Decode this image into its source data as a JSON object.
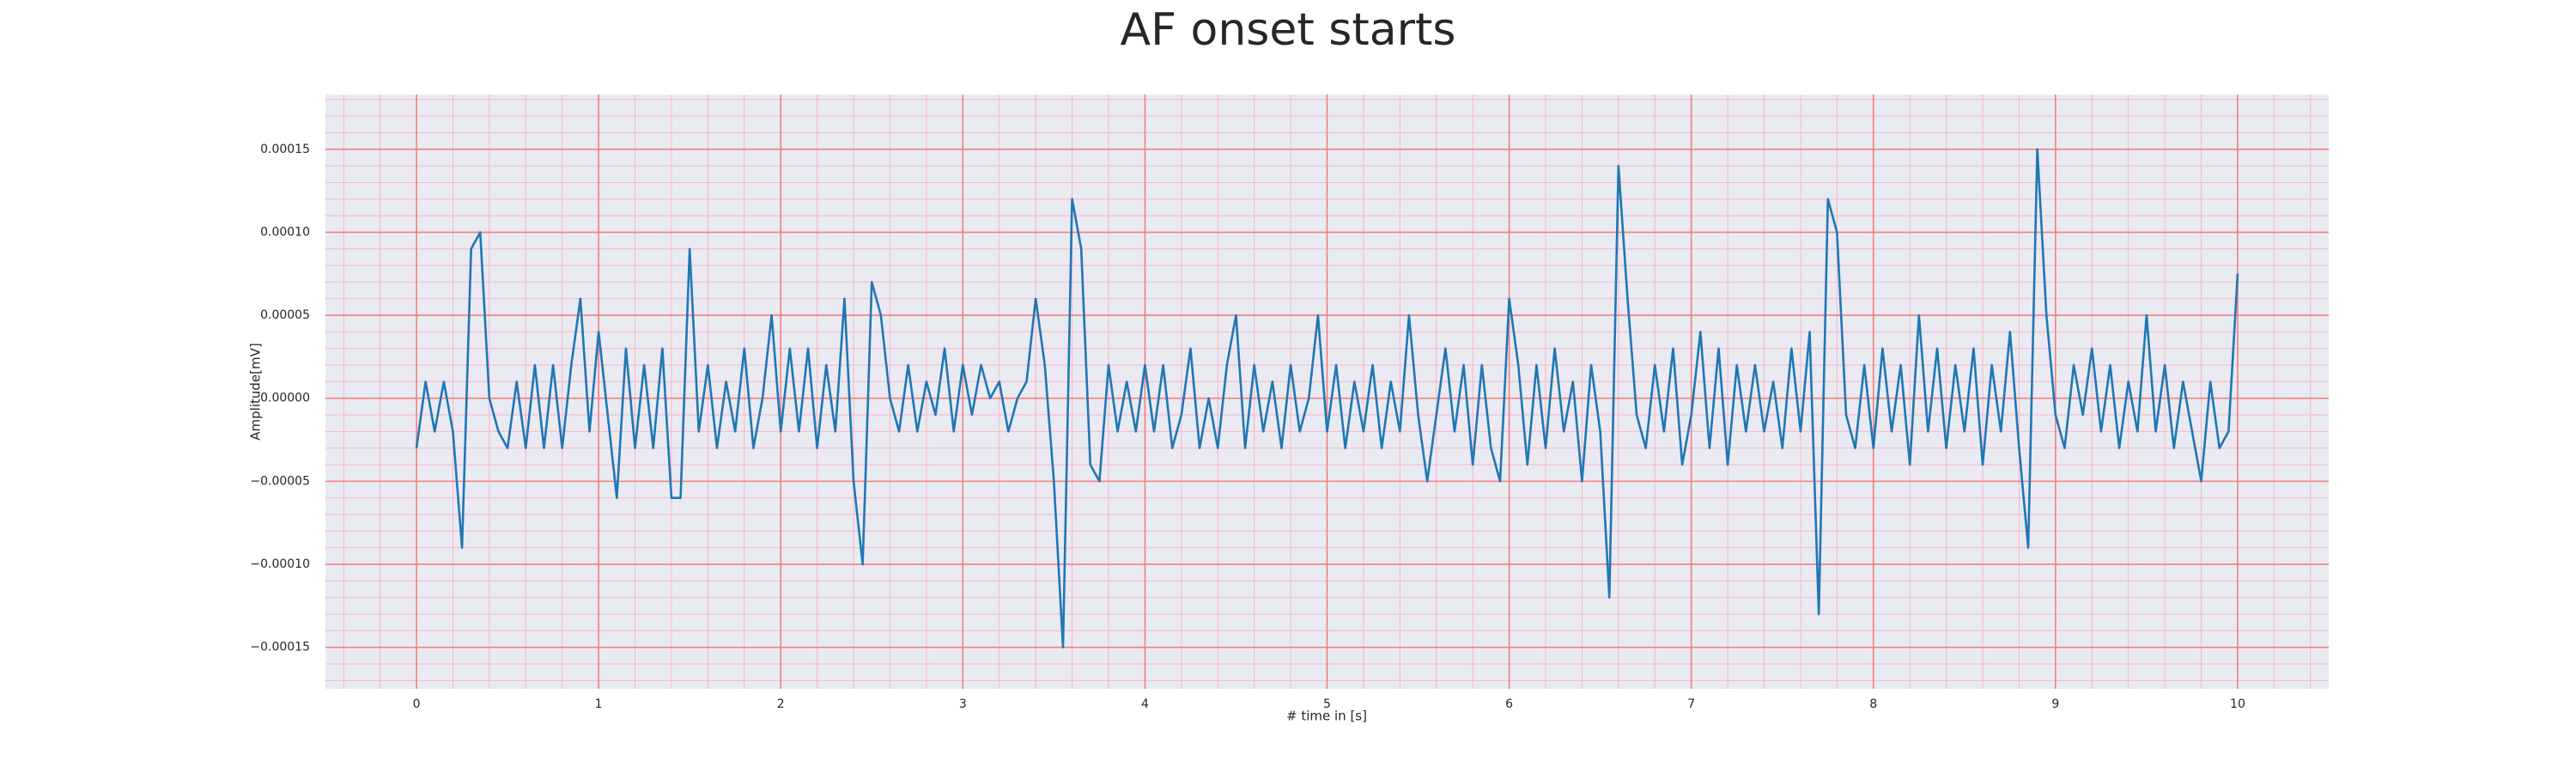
{
  "chart_data": {
    "type": "line",
    "title": "AF onset starts",
    "xlabel": "# time in [s]",
    "ylabel": "Amplitude[mV]",
    "color": "#1f77b4",
    "grid": true,
    "minor_grid": true,
    "xlim": [
      -0.5,
      10.5
    ],
    "ylim": [
      -0.000175,
      0.000183
    ],
    "xticks": [
      0,
      1,
      2,
      3,
      4,
      5,
      6,
      7,
      8,
      9,
      10
    ],
    "yticks": [
      {
        "value": -0.00015,
        "label": "−0.00015"
      },
      {
        "value": -0.0001,
        "label": "−0.00010"
      },
      {
        "value": -5e-05,
        "label": "−0.00005"
      },
      {
        "value": 0,
        "label": "0.00000"
      },
      {
        "value": 5e-05,
        "label": "0.00005"
      },
      {
        "value": 0.0001,
        "label": "0.00010"
      },
      {
        "value": 0.00015,
        "label": "0.00015"
      }
    ],
    "x": [
      0,
      0.05,
      0.1,
      0.15,
      0.2,
      0.25,
      0.3,
      0.35,
      0.4,
      0.45,
      0.5,
      0.55,
      0.6,
      0.65,
      0.7,
      0.75,
      0.8,
      0.85,
      0.9,
      0.95,
      1,
      1.05,
      1.1,
      1.15,
      1.2,
      1.25,
      1.3,
      1.35,
      1.4,
      1.45,
      1.5,
      1.55,
      1.6,
      1.65,
      1.7,
      1.75,
      1.8,
      1.85,
      1.9,
      1.95,
      2,
      2.05,
      2.1,
      2.15,
      2.2,
      2.25,
      2.3,
      2.35,
      2.4,
      2.45,
      2.5,
      2.55,
      2.6,
      2.65,
      2.7,
      2.75,
      2.8,
      2.85,
      2.9,
      2.95,
      3,
      3.05,
      3.1,
      3.15,
      3.2,
      3.25,
      3.3,
      3.35,
      3.4,
      3.45,
      3.5,
      3.55,
      3.6,
      3.65,
      3.7,
      3.75,
      3.8,
      3.85,
      3.9,
      3.95,
      4,
      4.05,
      4.1,
      4.15,
      4.2,
      4.25,
      4.3,
      4.35,
      4.4,
      4.45,
      4.5,
      4.55,
      4.6,
      4.65,
      4.7,
      4.75,
      4.8,
      4.85,
      4.9,
      4.95,
      5,
      5.05,
      5.1,
      5.15,
      5.2,
      5.25,
      5.3,
      5.35,
      5.4,
      5.45,
      5.5,
      5.55,
      5.6,
      5.65,
      5.7,
      5.75,
      5.8,
      5.85,
      5.9,
      5.95,
      6,
      6.05,
      6.1,
      6.15,
      6.2,
      6.25,
      6.3,
      6.35,
      6.4,
      6.45,
      6.5,
      6.55,
      6.6,
      6.65,
      6.7,
      6.75,
      6.8,
      6.85,
      6.9,
      6.95,
      7,
      7.05,
      7.1,
      7.15,
      7.2,
      7.25,
      7.3,
      7.35,
      7.4,
      7.45,
      7.5,
      7.55,
      7.6,
      7.65,
      7.7,
      7.75,
      7.8,
      7.85,
      7.9,
      7.95,
      8,
      8.05,
      8.1,
      8.15,
      8.2,
      8.25,
      8.3,
      8.35,
      8.4,
      8.45,
      8.5,
      8.55,
      8.6,
      8.65,
      8.7,
      8.75,
      8.8,
      8.85,
      8.9,
      8.95,
      9,
      9.05,
      9.1,
      9.15,
      9.2,
      9.25,
      9.3,
      9.35,
      9.4,
      9.45,
      9.5,
      9.55,
      9.6,
      9.65,
      9.7,
      9.75,
      9.8,
      9.85,
      9.9,
      9.95,
      10
    ],
    "values": [
      -3e-05,
      1e-05,
      -2e-05,
      1e-05,
      -2e-05,
      -9e-05,
      9e-05,
      0.0001,
      0,
      -2e-05,
      -3e-05,
      1e-05,
      -3e-05,
      2e-05,
      -3e-05,
      2e-05,
      -3e-05,
      2e-05,
      6e-05,
      -2e-05,
      4e-05,
      -1e-05,
      -6e-05,
      3e-05,
      -3e-05,
      2e-05,
      -3e-05,
      3e-05,
      -6e-05,
      -6e-05,
      9e-05,
      -2e-05,
      2e-05,
      -3e-05,
      1e-05,
      -2e-05,
      3e-05,
      -3e-05,
      0,
      5e-05,
      -2e-05,
      3e-05,
      -2e-05,
      3e-05,
      -3e-05,
      2e-05,
      -2e-05,
      6e-05,
      -5e-05,
      -0.0001,
      7e-05,
      5e-05,
      0,
      -2e-05,
      2e-05,
      -2e-05,
      1e-05,
      -1e-05,
      3e-05,
      -2e-05,
      2e-05,
      -1e-05,
      2e-05,
      0,
      1e-05,
      -2e-05,
      0,
      1e-05,
      6e-05,
      2e-05,
      -5e-05,
      -0.00015,
      0.00012,
      9e-05,
      -4e-05,
      -5e-05,
      2e-05,
      -2e-05,
      1e-05,
      -2e-05,
      2e-05,
      -2e-05,
      2e-05,
      -3e-05,
      -1e-05,
      3e-05,
      -3e-05,
      0,
      -3e-05,
      2e-05,
      5e-05,
      -3e-05,
      2e-05,
      -2e-05,
      1e-05,
      -3e-05,
      2e-05,
      -2e-05,
      0,
      5e-05,
      -2e-05,
      2e-05,
      -3e-05,
      1e-05,
      -2e-05,
      2e-05,
      -3e-05,
      1e-05,
      -2e-05,
      5e-05,
      -1e-05,
      -5e-05,
      -1e-05,
      3e-05,
      -2e-05,
      2e-05,
      -4e-05,
      2e-05,
      -3e-05,
      -5e-05,
      6e-05,
      2e-05,
      -4e-05,
      2e-05,
      -3e-05,
      3e-05,
      -2e-05,
      1e-05,
      -5e-05,
      2e-05,
      -2e-05,
      -0.00012,
      0.00014,
      6e-05,
      -1e-05,
      -3e-05,
      2e-05,
      -2e-05,
      3e-05,
      -4e-05,
      -1e-05,
      4e-05,
      -3e-05,
      3e-05,
      -4e-05,
      2e-05,
      -2e-05,
      2e-05,
      -2e-05,
      1e-05,
      -3e-05,
      3e-05,
      -2e-05,
      4e-05,
      -0.00013,
      0.00012,
      0.0001,
      -1e-05,
      -3e-05,
      2e-05,
      -3e-05,
      3e-05,
      -2e-05,
      2e-05,
      -4e-05,
      5e-05,
      -2e-05,
      3e-05,
      -3e-05,
      2e-05,
      -2e-05,
      3e-05,
      -4e-05,
      2e-05,
      -2e-05,
      4e-05,
      -3e-05,
      -9e-05,
      0.00015,
      5e-05,
      -1e-05,
      -3e-05,
      2e-05,
      -1e-05,
      3e-05,
      -2e-05,
      2e-05,
      -3e-05,
      1e-05,
      -2e-05,
      5e-05,
      -2e-05,
      2e-05,
      -3e-05,
      1e-05,
      -2e-05,
      -5e-05,
      1e-05,
      -3e-05,
      -2e-05,
      7.5e-05
    ]
  }
}
